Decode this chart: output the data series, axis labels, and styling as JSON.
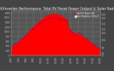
{
  "title": "Solar PV/Inverter Performance  Total PV Panel Power Output & Solar Radiation",
  "title_fontsize": 3.5,
  "bg_color": "#444444",
  "plot_bg_color": "#555555",
  "fill_color": "#ff0000",
  "dot_color": "#0000ff",
  "grid_color": "#aaaaaa",
  "xlim": [
    0,
    96
  ],
  "ylim_left": [
    0,
    1900
  ],
  "ylim_right": [
    0,
    300
  ],
  "num_points": 97,
  "pv_peak": 1760,
  "rad_peak": 255,
  "legend_pv": "Total PV Power (W)",
  "legend_rad": "Solar Radiation (W/m2)",
  "xtick_labels": [
    "6:00",
    "6:30",
    "7:00",
    "7:30",
    "8:00",
    "8:30",
    "9:00",
    "9:30",
    "10:00",
    "10:30",
    "11:00",
    "11:30",
    "12:00",
    "12:30",
    "13:00",
    "13:30",
    "14:00",
    "14:30",
    "15:00",
    "15:30",
    "16:00",
    "16:30",
    "17:00",
    "17:30",
    "18:00",
    "18:30",
    "19:00"
  ],
  "ytick_left": [
    0,
    200,
    400,
    600,
    800,
    1000,
    1200,
    1400,
    1600,
    1800
  ],
  "ytick_right": [
    0,
    14,
    50,
    100,
    150,
    175,
    214,
    250,
    275
  ]
}
